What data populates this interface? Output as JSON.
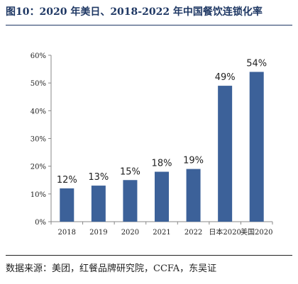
{
  "figure": {
    "title": "图10：2020 年美日、2018-2022 年中国餐饮连锁化率",
    "source": "数据来源：美团，红餐品牌研究院，CCFA，东吴证"
  },
  "colors": {
    "bar": "#3c6199",
    "title": "#1f3864",
    "axis": "#888888",
    "text": "#222222"
  },
  "chart_data": {
    "type": "bar",
    "title": "",
    "xlabel": "",
    "ylabel": "",
    "categories": [
      "2018",
      "2019",
      "2020",
      "2021",
      "2022",
      "日本2020",
      "美国2020"
    ],
    "values": [
      12,
      13,
      15,
      18,
      19,
      49,
      54
    ],
    "data_labels": [
      "12%",
      "13%",
      "15%",
      "18%",
      "19%",
      "49%",
      "54%"
    ],
    "ylim": [
      0,
      60
    ],
    "yticks": [
      0,
      10,
      20,
      30,
      40,
      50,
      60
    ],
    "ytick_labels": [
      "0%",
      "10%",
      "20%",
      "30%",
      "40%",
      "50%",
      "60%"
    ],
    "grid": false,
    "legend": "none"
  }
}
